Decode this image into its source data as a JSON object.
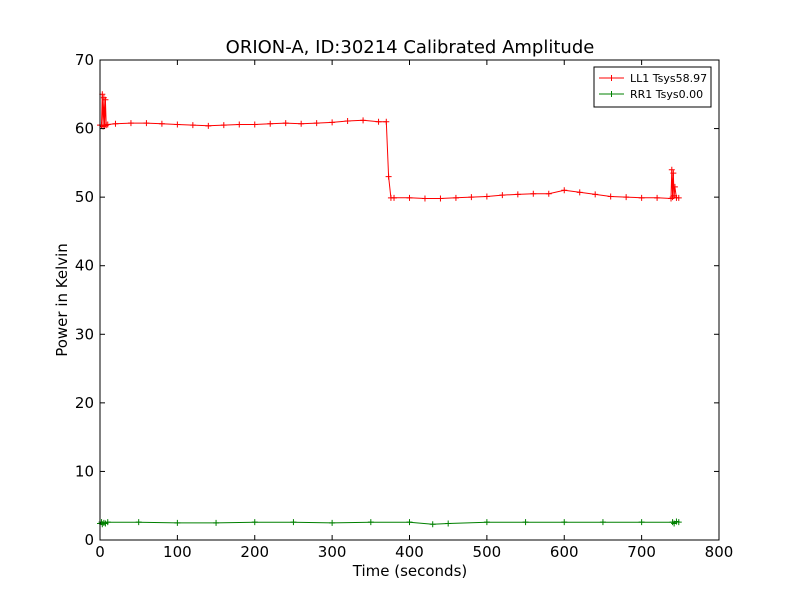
{
  "chart_data": {
    "type": "line",
    "title": "ORION-A, ID:30214 Calibrated Amplitude",
    "xlabel": "Time (seconds)",
    "ylabel": "Power in Kelvin",
    "xlim": [
      0,
      800
    ],
    "ylim": [
      0,
      70
    ],
    "xticks": [
      "0",
      "100",
      "200",
      "300",
      "400",
      "500",
      "600",
      "700",
      "800"
    ],
    "yticks": [
      "0",
      "10",
      "20",
      "30",
      "40",
      "50",
      "60",
      "70"
    ],
    "grid": false,
    "legend_position": "top-right",
    "series": [
      {
        "name": "LL1 Tsys58.97",
        "color": "#ff0000",
        "marker": "+",
        "x": [
          0,
          2,
          3,
          4,
          5,
          6,
          7,
          8,
          10,
          20,
          40,
          60,
          80,
          100,
          120,
          140,
          160,
          180,
          200,
          220,
          240,
          260,
          280,
          300,
          320,
          340,
          360,
          370,
          373,
          376,
          380,
          400,
          420,
          440,
          460,
          480,
          500,
          520,
          540,
          560,
          580,
          600,
          620,
          640,
          660,
          680,
          700,
          720,
          738,
          739,
          740,
          741,
          742,
          743,
          745,
          748
        ],
        "y": [
          60.5,
          60.5,
          65.0,
          60.3,
          64.5,
          60.4,
          64.2,
          60.5,
          60.6,
          60.7,
          60.8,
          60.8,
          60.7,
          60.6,
          60.5,
          60.4,
          60.5,
          60.6,
          60.6,
          60.7,
          60.8,
          60.7,
          60.8,
          60.9,
          61.1,
          61.2,
          61.0,
          61.0,
          53.0,
          49.9,
          49.9,
          49.9,
          49.8,
          49.8,
          49.9,
          50.0,
          50.1,
          50.3,
          50.4,
          50.5,
          50.5,
          51.0,
          50.7,
          50.4,
          50.1,
          50.0,
          49.9,
          49.9,
          49.8,
          54.0,
          50.0,
          53.5,
          50.2,
          51.5,
          49.9,
          49.9
        ]
      },
      {
        "name": "RR1 Tsys0.00",
        "color": "#008000",
        "marker": "+",
        "x": [
          0,
          2,
          3,
          5,
          7,
          10,
          50,
          100,
          150,
          200,
          250,
          300,
          350,
          400,
          430,
          450,
          500,
          550,
          600,
          650,
          700,
          740,
          742,
          745,
          748
        ],
        "y": [
          2.4,
          2.6,
          2.3,
          2.5,
          2.4,
          2.6,
          2.6,
          2.5,
          2.5,
          2.6,
          2.6,
          2.5,
          2.6,
          2.6,
          2.3,
          2.4,
          2.6,
          2.6,
          2.6,
          2.6,
          2.6,
          2.6,
          2.4,
          2.7,
          2.6
        ]
      }
    ]
  }
}
